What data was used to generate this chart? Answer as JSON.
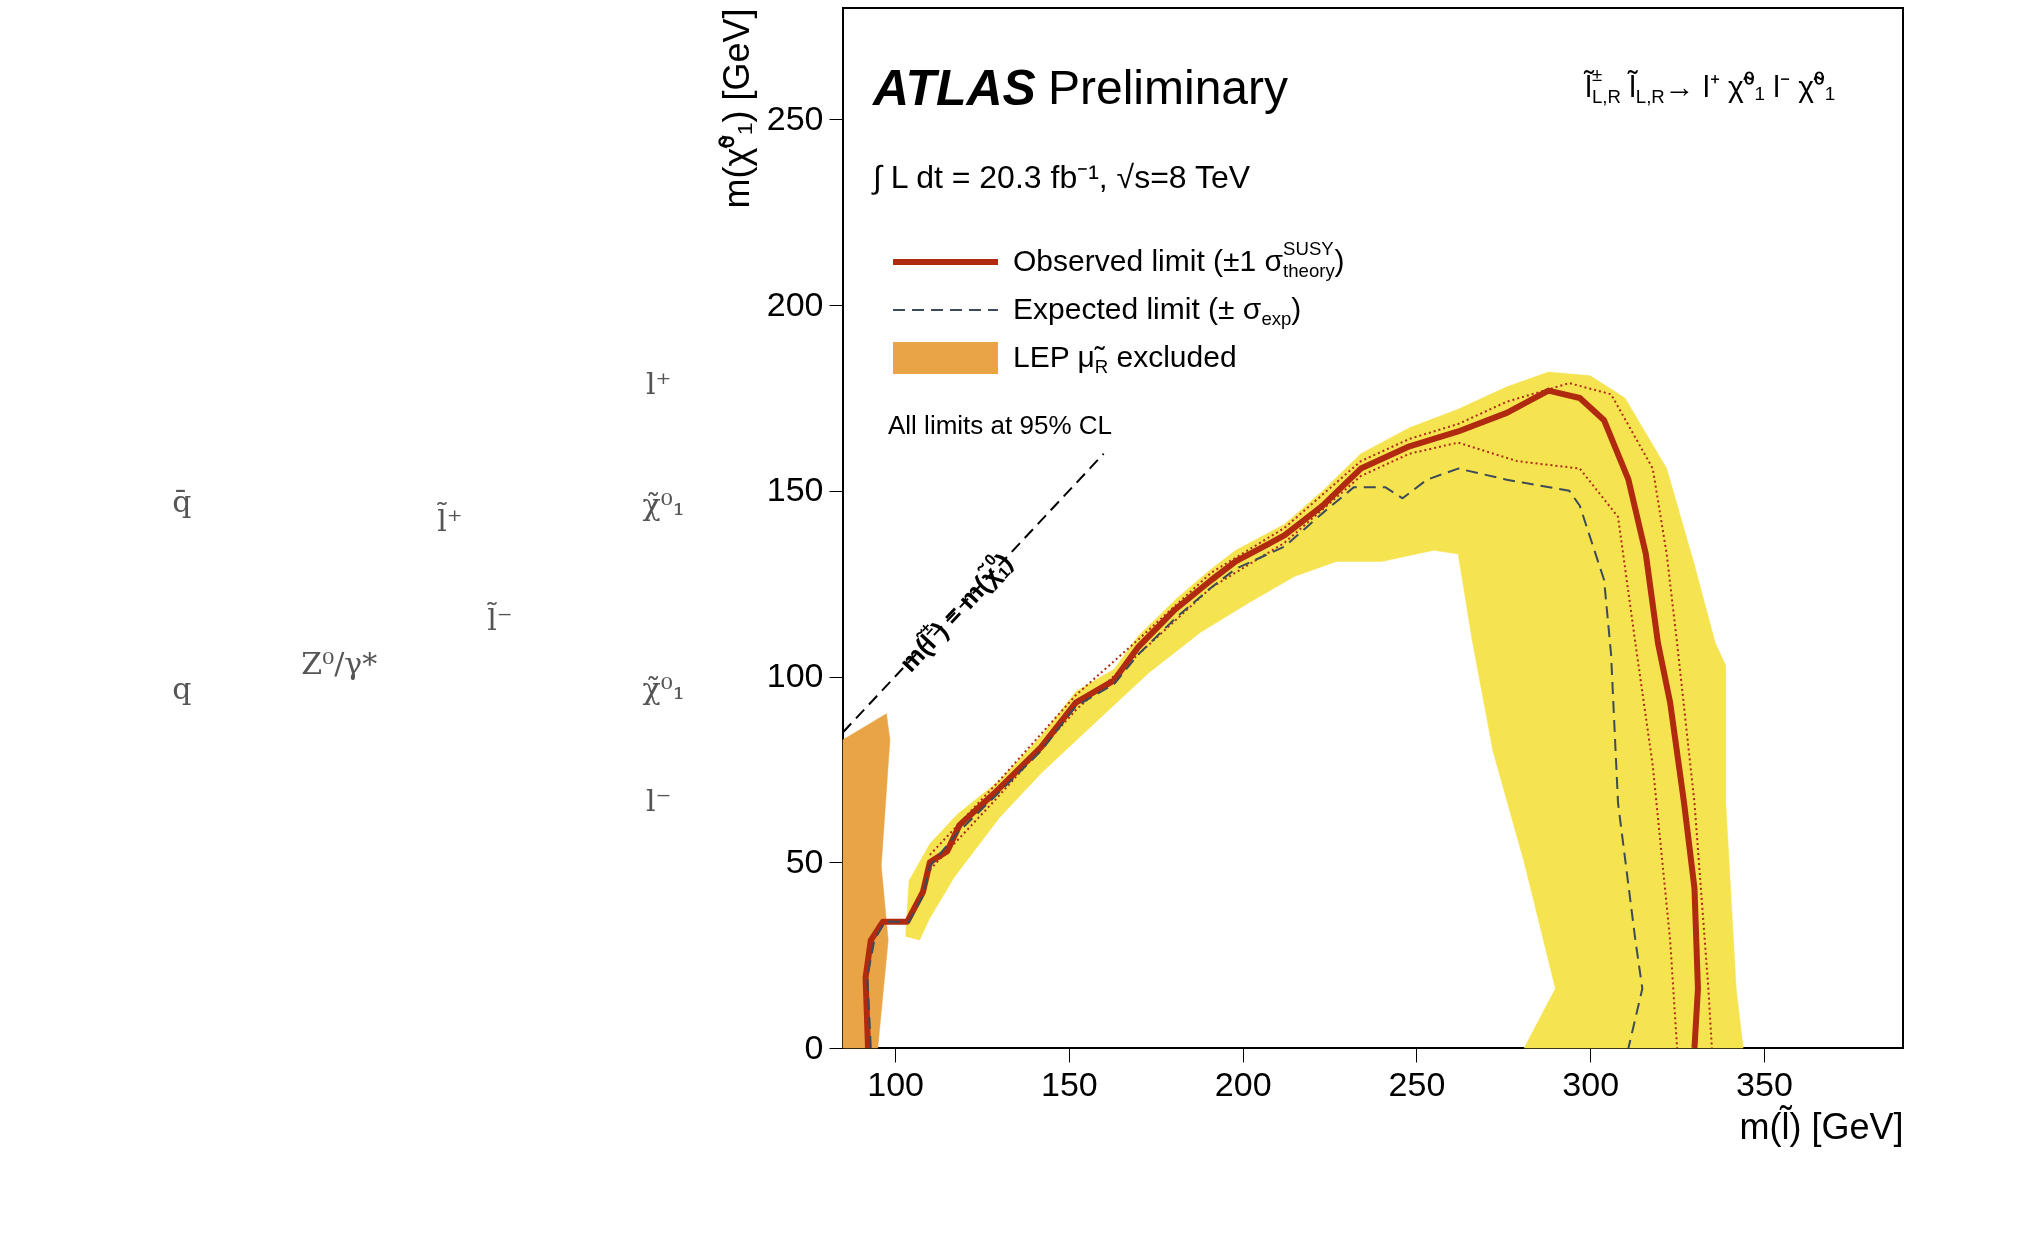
{
  "chart_data": [
    {
      "type": "other",
      "annotations": [
        "q̄",
        "q",
        "Z⁰/γ*",
        "l̃⁺",
        "l̃⁻",
        "l⁺",
        "l⁻",
        "χ̃⁰₁",
        "χ̃⁰₁"
      ]
    },
    {
      "type": "line",
      "xlabel": "m(l̃) [GeV]",
      "ylabel": "m(χ̃⁰₁) [GeV]",
      "xlim": [
        85,
        390
      ],
      "ylim": [
        0,
        280
      ],
      "xticks": [
        100,
        150,
        200,
        250,
        300,
        350
      ],
      "yticks": [
        0,
        50,
        100,
        150,
        200,
        250
      ],
      "grid": false,
      "legend": "top left",
      "annotations": [
        "ATLAS",
        "Preliminary",
        "∫ L dt = 20.3 fb⁻¹, √s=8 TeV",
        "All limits at 95% CL",
        "l̃$^{±}$$_{L,R}$ l̃$_{L,R}$→ l⁺ χ̃⁰₁ l⁻ χ̃⁰₁",
        "m(l̃$^{±}$) = m(χ̃$^{0}$$_{1}$)"
      ],
      "series": [
        {
          "type": "area",
          "color": "#f5e34f",
          "x": [
            103,
            104,
            110,
            118,
            130,
            142,
            152,
            163,
            170,
            181,
            191,
            198,
            212,
            223,
            234,
            248,
            262,
            276,
            288,
            300,
            310,
            322,
            330,
            336,
            339,
            339,
            342,
            344,
            281,
            290,
            281,
            272,
            266,
            262,
            255,
            240,
            227,
            215,
            202,
            188,
            173,
            158,
            142,
            130,
            117,
            110,
            107
          ],
          "values": [
            30,
            45,
            55,
            63,
            72,
            84,
            96,
            102,
            111,
            121,
            129,
            134,
            141,
            150,
            160,
            167,
            172,
            178,
            182,
            181,
            175,
            156,
            130,
            109,
            103,
            66,
            16,
            0,
            0,
            16,
            50,
            80,
            110,
            133,
            134,
            131,
            131,
            127,
            120,
            112,
            101,
            88,
            74,
            62,
            46,
            35,
            29
          ]
        },
        {
          "type": "line",
          "line_style": "dotted",
          "color": "#b02a1a",
          "x": [
            110,
            129,
            152,
            170,
            191,
            212,
            234,
            248,
            262,
            276,
            294,
            306,
            318,
            322,
            325,
            330,
            334,
            335
          ],
          "values": [
            52,
            71,
            95,
            110,
            128,
            140,
            158,
            164,
            168,
            174,
            179,
            176,
            156,
            133,
            109,
            66,
            16,
            0
          ]
        },
        {
          "type": "line",
          "line_style": "dotted",
          "color": "#b02a1a",
          "x": [
            110,
            129,
            152,
            170,
            191,
            212,
            234,
            248,
            262,
            279,
            297,
            308,
            313,
            318,
            323,
            325
          ],
          "values": [
            48,
            67,
            91,
            106,
            124,
            136,
            154,
            160,
            163,
            158,
            156,
            143,
            109,
            76,
            29,
            0
          ]
        },
        {
          "type": "line",
          "line_style": "solid",
          "name": "Observed limit (±1 σ$^{SUSY}$$_{theory}$)",
          "color": "#b02a10",
          "x": [
            92.2,
            91.5,
            93,
            96.5,
            103.5,
            108,
            110,
            115,
            118.5,
            129,
            142,
            152,
            163,
            170,
            180.5,
            191,
            198,
            212,
            223,
            234,
            248,
            262,
            276,
            288,
            297,
            304,
            311,
            316,
            319.5,
            323,
            327,
            330,
            331,
            330
          ],
          "values": [
            0,
            19,
            29,
            34,
            34,
            42,
            50,
            53,
            60,
            69,
            81,
            93,
            99,
            108,
            118,
            126,
            131,
            138,
            146,
            156,
            162,
            166,
            171,
            177,
            175,
            169,
            153,
            133,
            109,
            93,
            66,
            43,
            16,
            0
          ]
        },
        {
          "type": "line",
          "line_style": "dashed",
          "name": "Expected limit (± σ$_{exp}$)",
          "color": "#3d4a5a",
          "x": [
            93,
            92,
            94,
            97,
            104,
            108,
            110,
            118,
            129,
            142,
            152,
            163,
            170,
            181,
            191,
            198,
            212,
            223,
            232,
            241,
            246,
            253,
            262,
            276,
            294,
            297,
            304,
            306,
            308,
            313,
            315,
            311
          ],
          "values": [
            0,
            19,
            29,
            34,
            34,
            41,
            49,
            58,
            68,
            80,
            92,
            98,
            106,
            116,
            124,
            129,
            135,
            144,
            151,
            151,
            148,
            153,
            156,
            153,
            150,
            146,
            126,
            106,
            66,
            29,
            16,
            0
          ]
        },
        {
          "type": "area",
          "name": "LEP μ̃$_{R}$ excluded",
          "color": "#e9a446",
          "x": [
            85,
            85,
            97.5,
            98.5,
            96,
            98,
            95,
            85
          ],
          "values": [
            0,
            83,
            90,
            83,
            49,
            29,
            0,
            0
          ]
        },
        {
          "type": "line",
          "line_style": "dashed",
          "color": "#000000",
          "x": [
            85,
            160
          ],
          "values": [
            85,
            160
          ]
        }
      ]
    }
  ]
}
